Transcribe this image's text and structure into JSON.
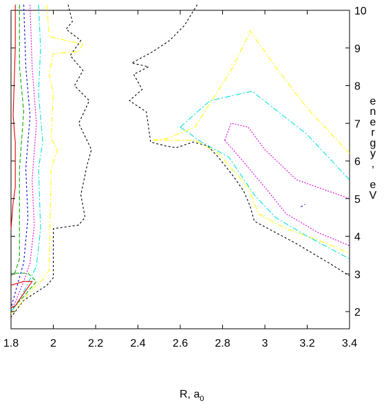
{
  "chart_data": {
    "type": "contour",
    "title": "",
    "xlabel": "R, a",
    "xlabel_subscript": "0",
    "ylabel_vertical": [
      "e",
      "n",
      "e",
      "r",
      "g",
      "y",
      ",",
      "",
      "e",
      "V"
    ],
    "xlim": [
      1.8,
      3.4
    ],
    "ylim": [
      1.5,
      10.15
    ],
    "x_ticks": [
      1.8,
      2.0,
      2.2,
      2.4,
      2.6,
      2.8,
      3.0,
      3.2,
      3.4
    ],
    "x_tick_labels": [
      "1.8",
      "2",
      "2.2",
      "2.4",
      "2.6",
      "2.8",
      "3",
      "3.2",
      "3.4"
    ],
    "y_ticks": [
      2,
      3,
      4,
      5,
      6,
      7,
      8,
      9,
      10
    ],
    "y_tick_labels": [
      "2",
      "3",
      "4",
      "5",
      "6",
      "7",
      "8",
      "9",
      "10"
    ],
    "y_axis_side": "right",
    "grid": false,
    "legend": "none",
    "series": [
      {
        "color": "#000000",
        "dash": "3,3",
        "segments": [
          [
            [
              2.07,
              10.15
            ],
            [
              2.09,
              9.7
            ],
            [
              2.06,
              9.5
            ],
            [
              2.13,
              9.2
            ],
            [
              2.08,
              8.8
            ],
            [
              2.14,
              8.4
            ],
            [
              2.1,
              8.0
            ],
            [
              2.17,
              7.6
            ],
            [
              2.12,
              7.0
            ],
            [
              2.18,
              6.3
            ],
            [
              2.16,
              5.9
            ],
            [
              2.13,
              5.1
            ],
            [
              2.15,
              4.5
            ],
            [
              2.12,
              4.3
            ],
            [
              2.0,
              4.2
            ],
            [
              2.0,
              2.9
            ],
            [
              1.97,
              2.7
            ],
            [
              1.86,
              2.3
            ],
            [
              1.82,
              2.0
            ],
            [
              1.8,
              1.85
            ]
          ],
          [
            [
              2.68,
              10.15
            ],
            [
              2.62,
              9.6
            ],
            [
              2.55,
              9.2
            ],
            [
              2.47,
              8.9
            ],
            [
              2.37,
              8.6
            ],
            [
              2.45,
              8.5
            ],
            [
              2.38,
              8.3
            ],
            [
              2.42,
              7.9
            ],
            [
              2.36,
              7.6
            ],
            [
              2.44,
              7.3
            ],
            [
              2.46,
              6.5
            ],
            [
              2.53,
              6.4
            ],
            [
              2.58,
              6.35
            ],
            [
              2.66,
              6.5
            ],
            [
              2.73,
              6.4
            ],
            [
              2.78,
              6.1
            ],
            [
              2.85,
              5.6
            ],
            [
              2.9,
              5.2
            ],
            [
              2.93,
              4.8
            ],
            [
              2.95,
              4.4
            ],
            [
              3.05,
              4.1
            ],
            [
              3.15,
              3.8
            ],
            [
              3.3,
              3.3
            ],
            [
              3.4,
              2.95
            ]
          ]
        ]
      },
      {
        "color": "#ffff00",
        "dash": "8,3,2,3",
        "segments": [
          [
            [
              1.97,
              10.15
            ],
            [
              1.98,
              9.3
            ],
            [
              2.14,
              9.1
            ],
            [
              2.12,
              8.9
            ],
            [
              2.0,
              8.85
            ],
            [
              1.98,
              8.3
            ],
            [
              2.0,
              7.8
            ],
            [
              1.99,
              6.6
            ],
            [
              2.02,
              6.3
            ],
            [
              1.99,
              5.8
            ],
            [
              1.98,
              3.1
            ],
            [
              1.95,
              2.85
            ],
            [
              1.9,
              2.6
            ],
            [
              1.83,
              2.1
            ],
            [
              1.8,
              1.95
            ]
          ],
          [
            [
              2.47,
              6.55
            ],
            [
              2.54,
              6.6
            ],
            [
              2.67,
              6.9
            ],
            [
              2.85,
              8.5
            ],
            [
              2.93,
              9.45
            ],
            [
              3.05,
              8.5
            ],
            [
              3.2,
              7.4
            ],
            [
              3.4,
              6.2
            ]
          ],
          [
            [
              2.47,
              6.55
            ],
            [
              2.67,
              6.55
            ],
            [
              2.78,
              6.2
            ],
            [
              2.92,
              5.3
            ],
            [
              2.97,
              4.6
            ],
            [
              3.1,
              4.2
            ],
            [
              3.25,
              3.9
            ],
            [
              3.4,
              3.55
            ]
          ]
        ]
      },
      {
        "color": "#00e0e0",
        "dash": "8,3,2,3",
        "segments": [
          [
            [
              1.93,
              10.15
            ],
            [
              1.94,
              9.0
            ],
            [
              1.93,
              7.8
            ],
            [
              1.95,
              6.5
            ],
            [
              1.93,
              5.8
            ],
            [
              1.94,
              4.2
            ],
            [
              1.92,
              3.2
            ],
            [
              1.88,
              2.75
            ],
            [
              1.83,
              2.2
            ],
            [
              1.8,
              2.0
            ]
          ],
          [
            [
              2.6,
              6.9
            ],
            [
              2.74,
              7.6
            ],
            [
              2.94,
              7.85
            ],
            [
              3.2,
              6.7
            ],
            [
              3.4,
              5.5
            ]
          ],
          [
            [
              2.6,
              6.9
            ],
            [
              2.7,
              6.5
            ],
            [
              2.83,
              6.1
            ],
            [
              2.95,
              5.1
            ],
            [
              3.05,
              4.5
            ],
            [
              3.2,
              4.0
            ],
            [
              3.4,
              3.4
            ]
          ]
        ]
      },
      {
        "color": "#e000e0",
        "dash": "2,2",
        "segments": [
          [
            [
              1.89,
              10.15
            ],
            [
              1.9,
              8.5
            ],
            [
              1.92,
              7.0
            ],
            [
              1.9,
              5.5
            ],
            [
              1.91,
              4.3
            ],
            [
              1.89,
              3.3
            ],
            [
              1.86,
              2.8
            ],
            [
              1.82,
              2.25
            ],
            [
              1.8,
              2.05
            ]
          ],
          [
            [
              2.81,
              6.55
            ],
            [
              2.84,
              7.0
            ],
            [
              2.92,
              6.9
            ],
            [
              3.0,
              6.3
            ],
            [
              3.15,
              5.5
            ],
            [
              3.4,
              5.0
            ]
          ],
          [
            [
              2.81,
              6.55
            ],
            [
              2.88,
              6.1
            ],
            [
              3.0,
              5.3
            ],
            [
              3.1,
              4.6
            ],
            [
              3.25,
              4.1
            ],
            [
              3.4,
              3.75
            ]
          ]
        ]
      },
      {
        "color": "#0000e0",
        "dash": "3,3",
        "segments": [
          [
            [
              1.86,
              10.15
            ],
            [
              1.87,
              8.5
            ],
            [
              1.89,
              7.2
            ],
            [
              1.87,
              5.8
            ],
            [
              1.88,
              4.5
            ],
            [
              1.86,
              3.3
            ],
            [
              1.83,
              2.7
            ],
            [
              1.8,
              2.1
            ]
          ],
          [
            [
              3.17,
              4.78
            ],
            [
              3.19,
              4.85
            ]
          ]
        ]
      },
      {
        "color": "#00b000",
        "dash": "6,3",
        "segments": [
          [
            [
              1.84,
              10.15
            ],
            [
              1.84,
              8.5
            ],
            [
              1.86,
              7.3
            ],
            [
              1.84,
              5.8
            ],
            [
              1.84,
              3.4
            ],
            [
              1.82,
              3.05
            ],
            [
              1.8,
              2.95
            ]
          ],
          [
            [
              1.82,
              3.02
            ],
            [
              1.88,
              3.02
            ],
            [
              1.92,
              2.8
            ],
            [
              1.86,
              2.4
            ],
            [
              1.81,
              2.1
            ],
            [
              1.8,
              2.05
            ]
          ]
        ]
      },
      {
        "color": "#e00000",
        "dash": "none",
        "segments": [
          [
            [
              1.82,
              10.15
            ],
            [
              1.82,
              9.0
            ],
            [
              1.81,
              7.2
            ],
            [
              1.82,
              6.5
            ],
            [
              1.82,
              5.9
            ],
            [
              1.82,
              5.3
            ],
            [
              1.81,
              4.9
            ],
            [
              1.8,
              4.2
            ]
          ],
          [
            [
              1.8,
              2.7
            ],
            [
              1.86,
              2.8
            ],
            [
              1.9,
              2.8
            ],
            [
              1.85,
              2.4
            ],
            [
              1.82,
              2.15
            ],
            [
              1.8,
              2.1
            ]
          ]
        ]
      }
    ]
  }
}
